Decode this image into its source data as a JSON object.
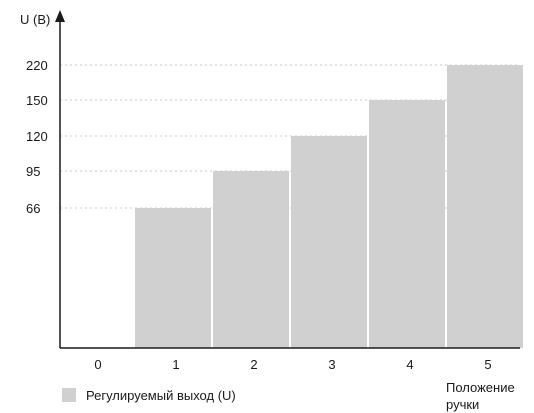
{
  "chart_data": {
    "type": "bar",
    "categories": [
      "0",
      "1",
      "2",
      "3",
      "4",
      "5"
    ],
    "series": [
      {
        "name": "Регулируемый выход (U)",
        "values": [
          0,
          66,
          95,
          120,
          150,
          220
        ],
        "color": "#d0d0d0"
      }
    ],
    "y_ticks": [
      "220",
      "150",
      "120",
      "95",
      "66"
    ],
    "y_tick_values": [
      220,
      150,
      120,
      95,
      66
    ],
    "ylabel": "U (В)",
    "xlabel_lines": [
      "Положение",
      "ручки"
    ],
    "legend_position": "bottom-left",
    "grid": "dotted horizontal at tick levels",
    "y_scale": "categorical ticks (non-linear spacing)"
  },
  "colors": {
    "bar": "#d0d0d0",
    "axis": "#1a1a1a",
    "grid": "#c8c8c8",
    "background": "#ffffff"
  }
}
